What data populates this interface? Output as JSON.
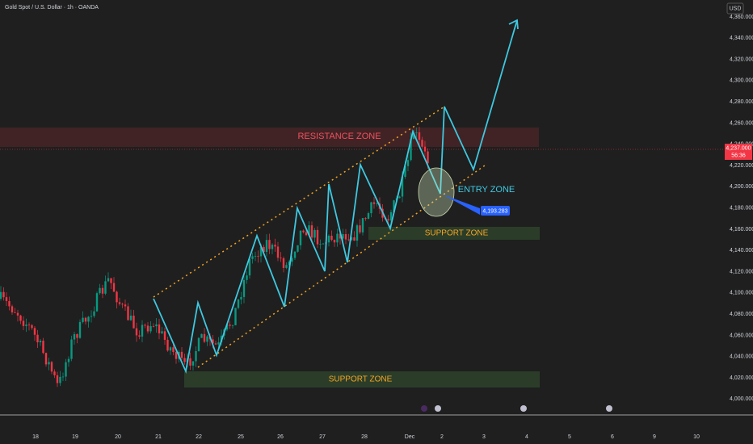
{
  "header": {
    "title": "Gold Spot / U.S. Dollar · 1h · OANDA",
    "currency": "USD"
  },
  "price_axis": {
    "labels": [
      "4,360.000",
      "4,340.000",
      "4,320.000",
      "4,300.000",
      "4,280.000",
      "4,260.000",
      "4,240.000",
      "4,220.000",
      "4,200.000",
      "4,180.000",
      "4,160.000",
      "4,140.000",
      "4,120.000",
      "4,100.000",
      "4,080.000",
      "4,060.000",
      "4,040.000",
      "4,020.000",
      "4,000.000"
    ],
    "current_price": "4,237.000",
    "countdown": "56:36"
  },
  "time_axis": {
    "labels": [
      "18",
      "19",
      "20",
      "21",
      "22",
      "25",
      "26",
      "27",
      "28",
      "Dec",
      "2",
      "3",
      "4",
      "5",
      "6",
      "9",
      "10"
    ]
  },
  "annotations": {
    "resistance": "RESISTANCE ZONE",
    "entry": "ENTRY ZONE",
    "support_upper": "SUPPORT ZONE",
    "support_lower": "SUPPORT ZONE",
    "entry_price": "4,193.283"
  }
}
